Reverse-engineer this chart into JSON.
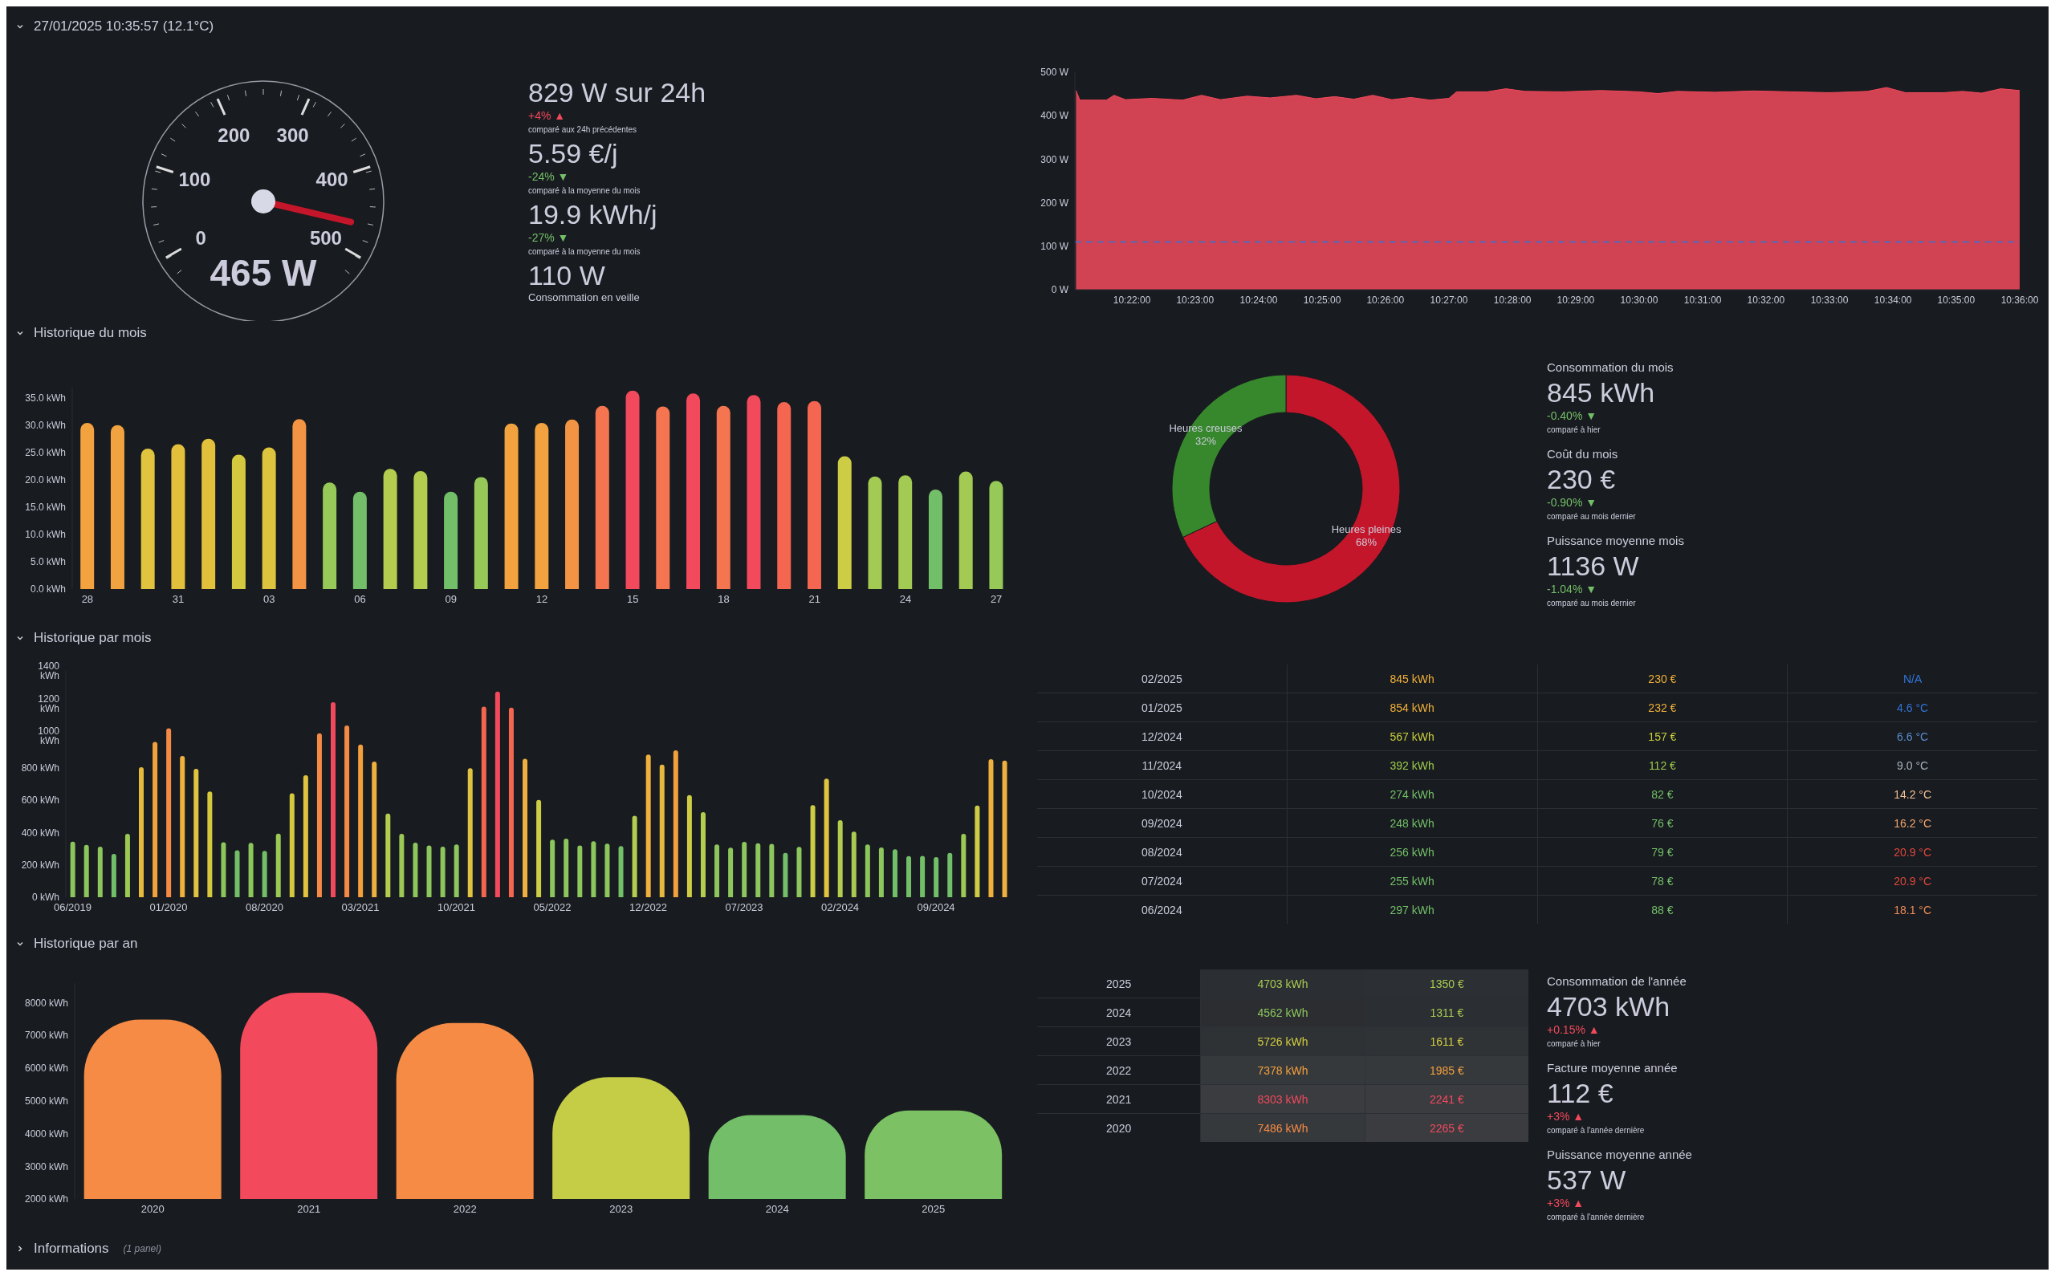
{
  "chart_data": [
    {
      "type": "other",
      "title": "27/01/2025 10:35:57 (12.1°C)",
      "values": [
        465
      ],
      "value_labels": [
        "465 W"
      ],
      "annotations": [
        "0",
        "100",
        "200",
        "300",
        "400",
        "500"
      ],
      "color": "#c4162a"
    },
    {
      "type": "other",
      "annotations": [
        "829 W sur 24h",
        "+4% ▲",
        "comparé aux 24h précédentes",
        "5.59 €/j",
        "-24% ▼",
        "comparé à la moyenne du mois",
        "19.9 kWh/j",
        "-27% ▼",
        "comparé à la moyenne du mois",
        "110 W",
        "Consommation en veille"
      ],
      "colors": [
        "#ccccdc",
        "#f2495c",
        "#ccccdc",
        "#ccccdc",
        "#73bf69",
        "#ccccdc",
        "#ccccdc",
        "#73bf69",
        "#ccccdc",
        "#ccccdc",
        "#ccccdc"
      ]
    },
    {
      "type": "area",
      "color": "#f2495c",
      "xlim": [
        10.3517,
        10.6
      ],
      "xticks": [
        {
          "value": 10.3667,
          "label": "10:22:00"
        },
        {
          "value": 10.3833,
          "label": "10:23:00"
        },
        {
          "value": 10.4,
          "label": "10:24:00"
        },
        {
          "value": 10.4167,
          "label": "10:25:00"
        },
        {
          "value": 10.4333,
          "label": "10:26:00"
        },
        {
          "value": 10.45,
          "label": "10:27:00"
        },
        {
          "value": 10.4667,
          "label": "10:28:00"
        },
        {
          "value": 10.4833,
          "label": "10:29:00"
        },
        {
          "value": 10.5,
          "label": "10:30:00"
        },
        {
          "value": 10.5167,
          "label": "10:31:00"
        },
        {
          "value": 10.5333,
          "label": "10:32:00"
        },
        {
          "value": 10.55,
          "label": "10:33:00"
        },
        {
          "value": 10.5667,
          "label": "10:34:00"
        },
        {
          "value": 10.5833,
          "label": "10:35:00"
        },
        {
          "value": 10.6,
          "label": "10:36:00"
        }
      ],
      "ylim": [
        0,
        500
      ],
      "yticks": [
        {
          "value": 0,
          "label": "0 W"
        },
        {
          "value": 100,
          "label": "100 W"
        },
        {
          "value": 200,
          "label": "200 W"
        },
        {
          "value": 300,
          "label": "300 W"
        },
        {
          "value": 400,
          "label": "400 W"
        },
        {
          "value": 500,
          "label": "500 W"
        }
      ],
      "x": [
        10.352,
        10.353,
        10.36,
        10.362,
        10.365,
        10.372,
        10.38,
        10.385,
        10.39,
        10.397,
        10.403,
        10.41,
        10.415,
        10.42,
        10.425,
        10.43,
        10.435,
        10.44,
        10.445,
        10.45,
        10.452,
        10.46,
        10.465,
        10.47,
        10.48,
        10.49,
        10.5,
        10.505,
        10.51,
        10.52,
        10.53,
        10.54,
        10.55,
        10.56,
        10.565,
        10.57,
        10.58,
        10.585,
        10.59,
        10.595,
        10.6
      ],
      "values": [
        458,
        436,
        436,
        447,
        437,
        440,
        436,
        447,
        437,
        445,
        441,
        447,
        439,
        444,
        438,
        447,
        437,
        442,
        436,
        440,
        455,
        455,
        462,
        456,
        455,
        458,
        455,
        451,
        456,
        454,
        457,
        455,
        453,
        456,
        465,
        453,
        453,
        456,
        452,
        462,
        458
      ],
      "ref_lines": [
        {
          "axis": "y",
          "value": 110,
          "color": "#3274d9",
          "line_style": "dashed"
        }
      ]
    },
    {
      "type": "bar",
      "title": "Historique du mois",
      "categories": [
        "28",
        null,
        null,
        "31",
        null,
        null,
        "03",
        null,
        null,
        "06",
        null,
        null,
        "09",
        null,
        null,
        "12",
        null,
        null,
        "15",
        null,
        null,
        "18",
        null,
        null,
        "21",
        null,
        null,
        "24",
        null,
        null,
        "27"
      ],
      "values": [
        30.4,
        30.0,
        25.7,
        26.5,
        27.5,
        24.6,
        25.9,
        31.1,
        19.5,
        17.8,
        22.0,
        21.6,
        17.8,
        20.5,
        30.3,
        30.4,
        31.0,
        33.5,
        36.3,
        33.4,
        35.8,
        33.5,
        35.5,
        34.2,
        34.4,
        24.3,
        20.6,
        20.8,
        18.2,
        21.5,
        19.8
      ],
      "colors": [
        "#f2a33f",
        "#f2a33f",
        "#e0c440",
        "#e3c03c",
        "#e3c03c",
        "#d4c93e",
        "#dcc43e",
        "#f39444",
        "#96c957",
        "#73bf69",
        "#b5cd4f",
        "#b5cd4f",
        "#73bf69",
        "#96c957",
        "#f2a33f",
        "#f2a33f",
        "#f39444",
        "#f4754f",
        "#f2495c",
        "#f4754f",
        "#f2495c",
        "#f4754f",
        "#f2495c",
        "#f4664f",
        "#f4664f",
        "#cdcd45",
        "#a3ca52",
        "#a3ca52",
        "#73bf69",
        "#a3ca52",
        "#96c957"
      ],
      "ylim": [
        0,
        37
      ],
      "yticks": [
        {
          "value": 0,
          "label": "0.0 kWh"
        },
        {
          "value": 5,
          "label": "5.0 kWh"
        },
        {
          "value": 10,
          "label": "10.0 kWh"
        },
        {
          "value": 15,
          "label": "15.0 kWh"
        },
        {
          "value": 20,
          "label": "20.0 kWh"
        },
        {
          "value": 25,
          "label": "25.0 kWh"
        },
        {
          "value": 30,
          "label": "30.0 kWh"
        },
        {
          "value": 35,
          "label": "35.0 kWh"
        }
      ]
    },
    {
      "type": "donut",
      "categories": [
        "Heures pleines",
        "Heures creuses"
      ],
      "values": [
        68,
        32
      ],
      "value_labels": [
        "68%",
        "32%"
      ],
      "colors": [
        "#c4162a",
        "#37872d"
      ]
    },
    {
      "type": "other",
      "annotations": [
        "Consommation du mois",
        "845 kWh",
        "-0.40% ▼",
        "comparé à hier",
        "Coût du mois",
        "230 €",
        "-0.90% ▼",
        "comparé au mois dernier",
        "Puissance moyenne mois",
        "1136 W",
        "-1.04% ▼",
        "comparé au mois dernier"
      ],
      "colors": [
        "#ccccdc",
        "#ccccdc",
        "#73bf69",
        "#ccccdc",
        "#ccccdc",
        "#ccccdc",
        "#73bf69",
        "#ccccdc",
        "#ccccdc",
        "#ccccdc",
        "#73bf69",
        "#ccccdc"
      ]
    },
    {
      "type": "bar",
      "title": "Historique par mois",
      "categories": [
        "06/2019",
        null,
        null,
        null,
        null,
        null,
        null,
        "01/2020",
        null,
        null,
        null,
        null,
        null,
        null,
        "08/2020",
        null,
        null,
        null,
        null,
        null,
        null,
        "03/2021",
        null,
        null,
        null,
        null,
        null,
        null,
        "10/2021",
        null,
        null,
        null,
        null,
        null,
        null,
        "05/2022",
        null,
        null,
        null,
        null,
        null,
        null,
        "12/2022",
        null,
        null,
        null,
        null,
        null,
        null,
        "07/2023",
        null,
        null,
        null,
        null,
        null,
        null,
        "02/2024",
        null,
        null,
        null,
        null,
        null,
        null,
        "09/2024",
        null,
        null,
        null,
        null,
        null
      ],
      "values": [
        344,
        324,
        313,
        268,
        392,
        804,
        961,
        1045,
        874,
        794,
        654,
        340,
        291,
        336,
        287,
        394,
        643,
        755,
        1014,
        1206,
        1062,
        944,
        839,
        518,
        392,
        338,
        320,
        313,
        326,
        798,
        1179,
        1272,
        1173,
        856,
        602,
        356,
        362,
        320,
        346,
        332,
        316,
        504,
        882,
        820,
        908,
        632,
        526,
        326,
        306,
        342,
        334,
        330,
        274,
        312,
        570,
        734,
        476,
        406,
        326,
        308,
        297,
        255,
        256,
        248,
        274,
        392,
        567,
        854,
        845
      ],
      "colors": [
        "#8cc65c",
        "#8cc65c",
        "#8cc65c",
        "#73bf69",
        "#9cc855",
        "#e6b93c",
        "#f2a03d",
        "#f48a45",
        "#efb03f",
        "#e0c440",
        "#d4c93e",
        "#8cc65c",
        "#73bf69",
        "#8cc65c",
        "#73bf69",
        "#9cc855",
        "#d4c93e",
        "#e0c440",
        "#f48a45",
        "#f2495c",
        "#f48a45",
        "#f2a03d",
        "#efb03f",
        "#b5cd4f",
        "#9cc855",
        "#8cc65c",
        "#8cc65c",
        "#8cc65c",
        "#8cc65c",
        "#e0c440",
        "#f4664f",
        "#f2495c",
        "#f4664f",
        "#efb03f",
        "#cdcd45",
        "#8cc65c",
        "#8cc65c",
        "#8cc65c",
        "#8cc65c",
        "#8cc65c",
        "#73bf69",
        "#b5cd4f",
        "#efb03f",
        "#e6b93c",
        "#f2a03d",
        "#cdcd45",
        "#b5cd4f",
        "#8cc65c",
        "#8cc65c",
        "#8cc65c",
        "#8cc65c",
        "#8cc65c",
        "#73bf69",
        "#8cc65c",
        "#cdcd45",
        "#e0c440",
        "#b5cd4f",
        "#a8cb50",
        "#8cc65c",
        "#8cc65c",
        "#73bf69",
        "#73bf69",
        "#73bf69",
        "#73bf69",
        "#73bf69",
        "#9cc855",
        "#cdcd45",
        "#efb03f",
        "#efb03f"
      ],
      "ylim": [
        0,
        1400
      ],
      "yticks": [
        {
          "value": 0,
          "label": "0 kWh"
        },
        {
          "value": 200,
          "label": "200 kWh"
        },
        {
          "value": 400,
          "label": "400 kWh"
        },
        {
          "value": 600,
          "label": "600 kWh"
        },
        {
          "value": 800,
          "label": "800 kWh"
        },
        {
          "value": 1000,
          "label": "1000 kWh"
        },
        {
          "value": 1200,
          "label": "1200 kWh"
        },
        {
          "value": 1400,
          "label": "1400 kWh"
        }
      ]
    },
    {
      "type": "other",
      "y_categories": [
        "02/2025",
        "01/2025",
        "12/2024",
        "11/2024",
        "10/2024",
        "09/2024",
        "08/2024",
        "07/2024",
        "06/2024"
      ],
      "cell_labels": [
        [
          "845 kWh",
          "230 €",
          "N/A"
        ],
        [
          "854 kWh",
          "232 €",
          "4.6 °C"
        ],
        [
          "567 kWh",
          "157 €",
          "6.6 °C"
        ],
        [
          "392 kWh",
          "112 €",
          "9.0 °C"
        ],
        [
          "274 kWh",
          "82 €",
          "14.2 °C"
        ],
        [
          "248 kWh",
          "76 €",
          "16.2 °C"
        ],
        [
          "256 kWh",
          "79 €",
          "20.9 °C"
        ],
        [
          "255 kWh",
          "78 €",
          "20.9 °C"
        ],
        [
          "297 kWh",
          "88 €",
          "18.1 °C"
        ]
      ],
      "colors": [
        [
          "#f0b03a",
          "#f0b03a",
          "#3274d9"
        ],
        [
          "#f0b03a",
          "#f0b03a",
          "#3274d9"
        ],
        [
          "#c9cf3c",
          "#c9cf3c",
          "#5a8fd0"
        ],
        [
          "#9ecb4f",
          "#9ecb4f",
          "#a6b4c2"
        ],
        [
          "#73bf69",
          "#73bf69",
          "#f2c294"
        ],
        [
          "#73bf69",
          "#73bf69",
          "#f2a872"
        ],
        [
          "#73bf69",
          "#73bf69",
          "#e0473d"
        ],
        [
          "#73bf69",
          "#73bf69",
          "#e0473d"
        ],
        [
          "#73bf69",
          "#73bf69",
          "#ef8a57"
        ]
      ]
    },
    {
      "type": "bar",
      "title": "Historique par an",
      "categories": [
        "2020",
        "2021",
        "2022",
        "2023",
        "2024",
        "2025"
      ],
      "values": [
        7486,
        8303,
        7378,
        5726,
        4562,
        4703
      ],
      "colors": [
        "#f58b45",
        "#f2495c",
        "#f58b45",
        "#c5cc46",
        "#73bf69",
        "#7cc163"
      ],
      "ylim": [
        2000,
        8600
      ],
      "yticks": [
        {
          "value": 2000,
          "label": "2000 kWh"
        },
        {
          "value": 3000,
          "label": "3000 kWh"
        },
        {
          "value": 4000,
          "label": "4000 kWh"
        },
        {
          "value": 5000,
          "label": "5000 kWh"
        },
        {
          "value": 6000,
          "label": "6000 kWh"
        },
        {
          "value": 7000,
          "label": "7000 kWh"
        },
        {
          "value": 8000,
          "label": "8000 kWh"
        }
      ]
    },
    {
      "type": "heatmap",
      "categories": [
        null,
        null
      ],
      "y_categories": [
        "2025",
        "2024",
        "2023",
        "2022",
        "2021",
        "2020"
      ],
      "cells": [
        [
          4703,
          1350
        ],
        [
          4562,
          1311
        ],
        [
          5726,
          1611
        ],
        [
          7378,
          1985
        ],
        [
          8303,
          2241
        ],
        [
          7486,
          2265
        ]
      ],
      "cell_labels": [
        [
          "4703 kWh",
          "1350 €"
        ],
        [
          "4562 kWh",
          "1311 €"
        ],
        [
          "5726 kWh",
          "1611 €"
        ],
        [
          "7378 kWh",
          "1985 €"
        ],
        [
          "8303 kWh",
          "2241 €"
        ],
        [
          "7486 kWh",
          "2265 €"
        ]
      ],
      "colors": [
        [
          "#a8cb50",
          "#a8cb50"
        ],
        [
          "#8cc65c",
          "#a8cb50"
        ],
        [
          "#d0cd3f",
          "#d0cd3f"
        ],
        [
          "#f2a03d",
          "#f2a03d"
        ],
        [
          "#f2495c",
          "#f2495c"
        ],
        [
          "#f58b45",
          "#f2495c"
        ]
      ]
    },
    {
      "type": "other",
      "annotations": [
        "Consommation de l'année",
        "4703 kWh",
        "+0.15% ▲",
        "comparé à hier",
        "Facture moyenne année",
        "112 €",
        "+3% ▲",
        "comparé à l'année dernière",
        "Puissance moyenne année",
        "537 W",
        "+3% ▲",
        "comparé à l'année dernière"
      ],
      "colors": [
        "#ccccdc",
        "#ccccdc",
        "#f2495c",
        "#ccccdc",
        "#ccccdc",
        "#ccccdc",
        "#f2495c",
        "#ccccdc",
        "#ccccdc",
        "#ccccdc",
        "#f2495c",
        "#ccccdc"
      ]
    },
    {
      "type": "other",
      "title": "Informations",
      "subtitle": "(1 panel)"
    }
  ]
}
